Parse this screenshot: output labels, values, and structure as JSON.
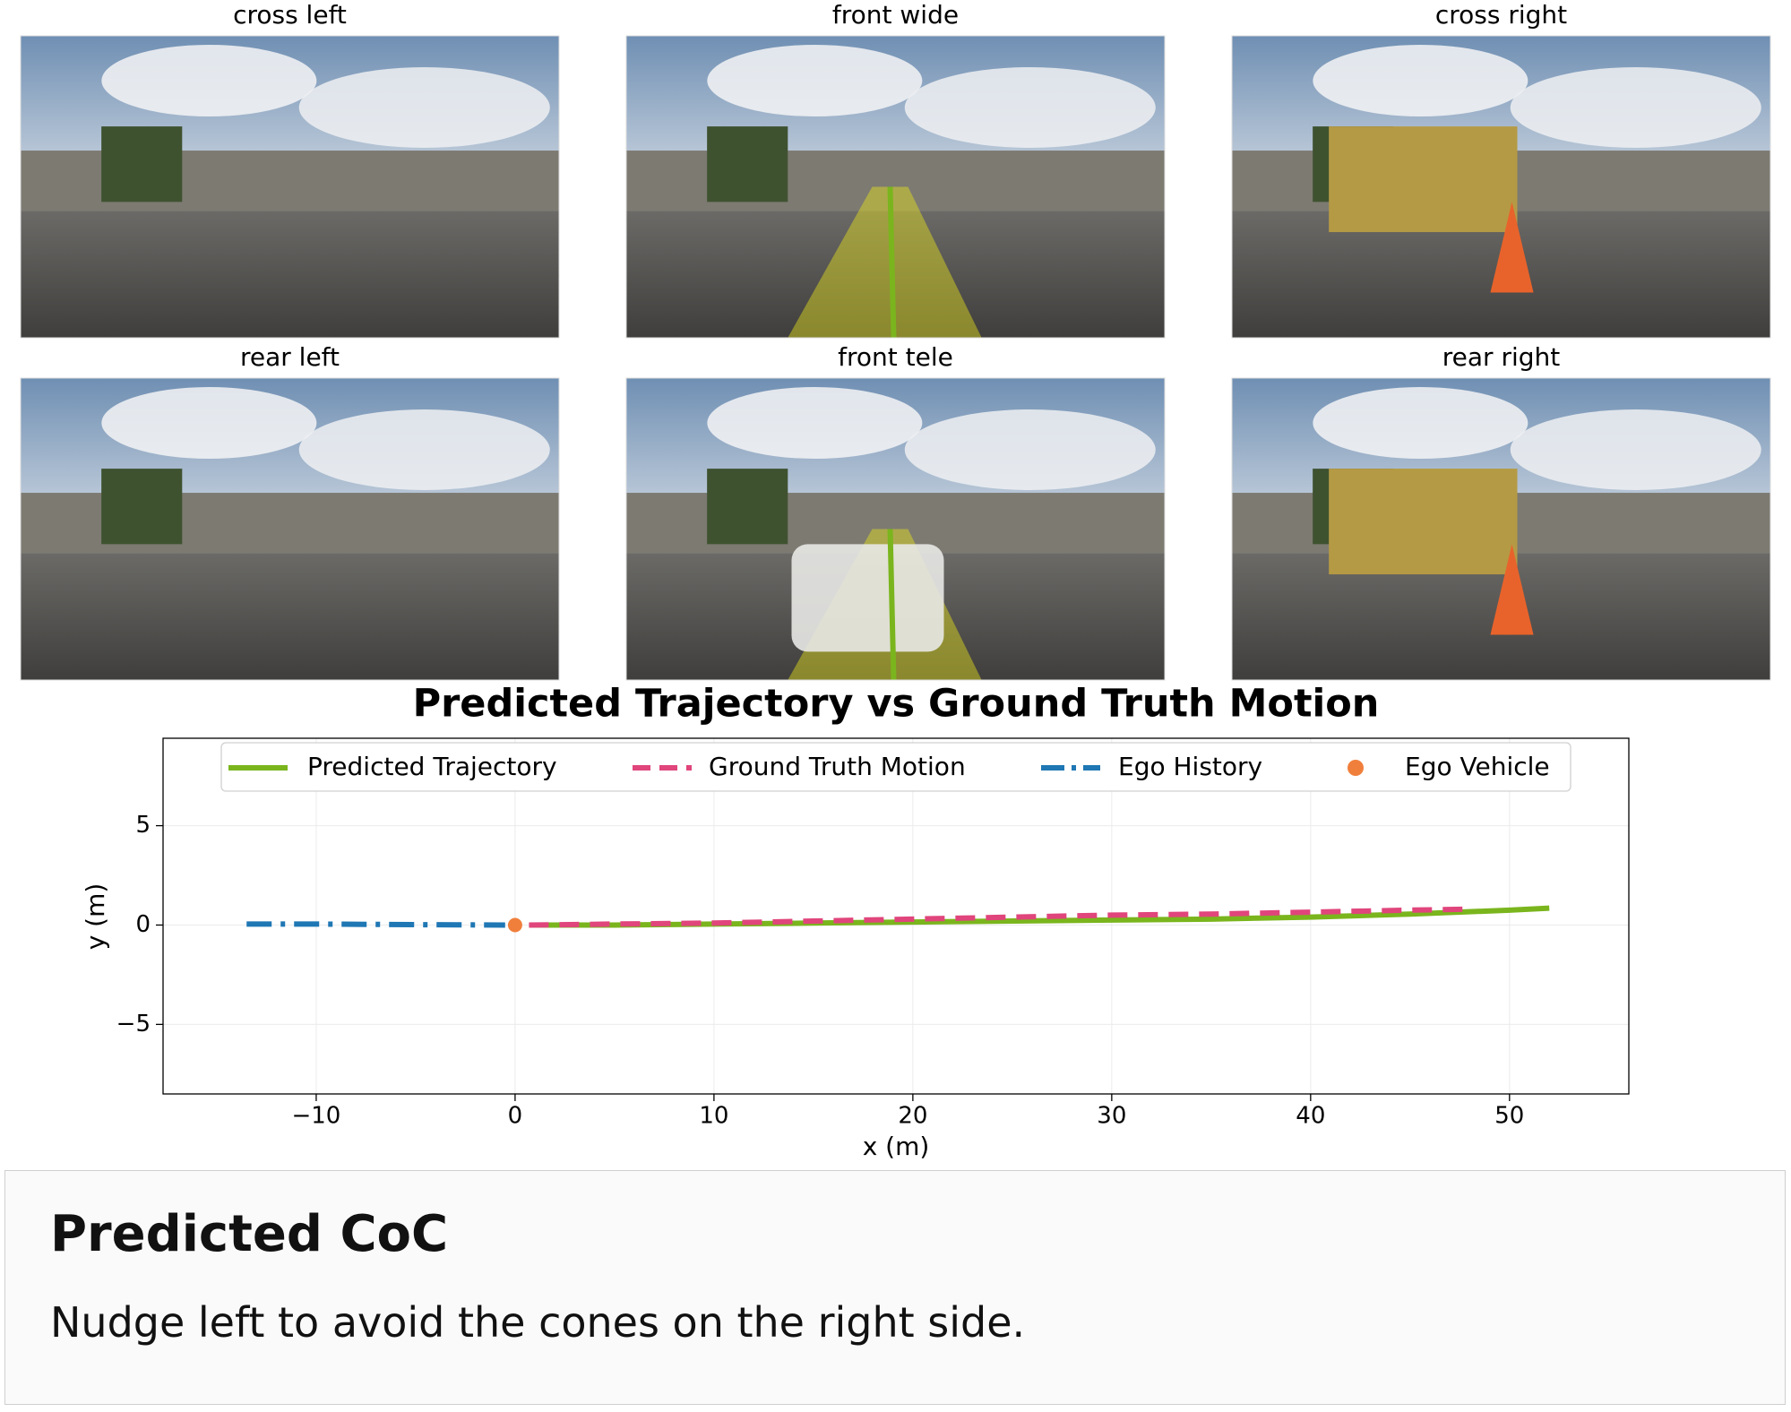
{
  "cameras": [
    "cross left",
    "front wide",
    "cross right",
    "rear left",
    "front tele",
    "rear right"
  ],
  "chart_data": {
    "type": "line",
    "title": "Predicted Trajectory vs Ground Truth Motion",
    "x_label": "x (m)",
    "y_label": "y (m)",
    "xlim": [
      -17.7,
      56
    ],
    "ylim": [
      -8.5,
      9.4
    ],
    "xticks": [
      {
        "value": -10,
        "label": "−10"
      },
      0,
      10,
      20,
      30,
      40,
      50
    ],
    "yticks": [
      {
        "value": -5,
        "label": "−5"
      },
      0,
      5
    ],
    "grid": true,
    "legend": "top",
    "series": [
      {
        "name": "Predicted Trajectory",
        "color": "#7ab51d",
        "linestyle": "solid",
        "x": [
          0.7,
          5,
          10,
          15,
          20,
          25,
          30,
          35,
          40,
          45,
          50,
          52
        ],
        "values": [
          0,
          0,
          0.05,
          0.1,
          0.15,
          0.2,
          0.25,
          0.3,
          0.4,
          0.55,
          0.75,
          0.85
        ]
      },
      {
        "name": "Ground Truth Motion",
        "color": "#e0457b",
        "linestyle": "dashed",
        "x": [
          0.7,
          5,
          10,
          15,
          20,
          25,
          30,
          35,
          40,
          45,
          48
        ],
        "values": [
          0,
          0.05,
          0.1,
          0.2,
          0.3,
          0.4,
          0.5,
          0.55,
          0.65,
          0.75,
          0.8
        ]
      },
      {
        "name": "Ego History",
        "color": "#1f77b4",
        "linestyle": "dashdot",
        "x": [
          -13.5,
          -10,
          -5,
          -0.5
        ],
        "values": [
          0.05,
          0.05,
          0.02,
          0
        ]
      },
      {
        "name": "Ego Vehicle",
        "color": "#f07f3c",
        "linestyle": "marker",
        "x": [
          0
        ],
        "values": [
          0
        ]
      }
    ]
  },
  "coc": {
    "title": "Predicted CoC",
    "text": "Nudge left to avoid the cones on the right side."
  }
}
